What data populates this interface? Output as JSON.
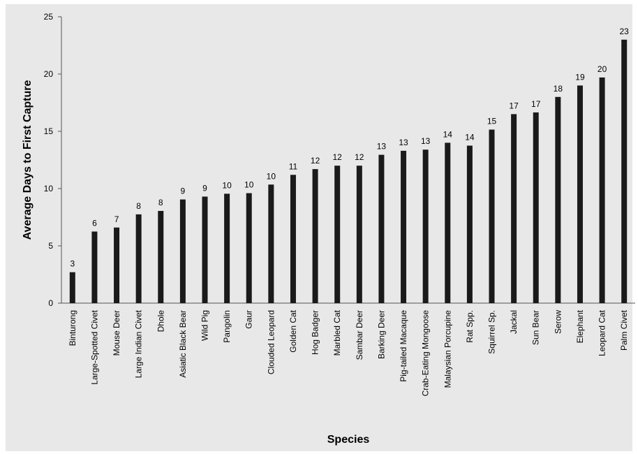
{
  "chart_data": {
    "type": "bar",
    "title": "",
    "xlabel": "Species",
    "ylabel": "Average Days to First Capture",
    "ylim": [
      0,
      25
    ],
    "yticks": [
      0,
      5,
      10,
      15,
      20,
      25
    ],
    "grid": false,
    "legend": "none",
    "bar_color": "#1a1a1a",
    "background_color": "#e8e8e8",
    "categories": [
      "Binturong",
      "Large-Spotted Civet",
      "Mouse Deer",
      "Large Indian Civet",
      "Dhole",
      "Asiatic Black Bear",
      "Wild Pig",
      "Pangolin",
      "Gaur",
      "Clouded Leopard",
      "Golden Cat",
      "Hog Badger",
      "Marbled Cat",
      "Sambar Deer",
      "Barking Deer",
      "Pig-tailed Macaque",
      "Crab-Eating Mongoose",
      "Malaysian Porcupine",
      "Rat Spp.",
      "Squirrel Sp.",
      "Jackal",
      "Sun Bear",
      "Serow",
      "Elephant",
      "Leopard Cat",
      "Palm Civet"
    ],
    "values": [
      2.7,
      6.25,
      6.6,
      7.75,
      8.05,
      9.05,
      9.3,
      9.55,
      9.6,
      10.35,
      11.2,
      11.7,
      12.0,
      12.0,
      12.95,
      13.3,
      13.4,
      14.0,
      13.75,
      15.15,
      16.5,
      16.65,
      18.0,
      19.0,
      19.7,
      23.0
    ],
    "data_labels": [
      "3",
      "6",
      "7",
      "8",
      "8",
      "9",
      "9",
      "10",
      "10",
      "10",
      "11",
      "12",
      "12",
      "12",
      "13",
      "13",
      "13",
      "14",
      "14",
      "15",
      "17",
      "17",
      "18",
      "19",
      "20",
      "23"
    ]
  }
}
